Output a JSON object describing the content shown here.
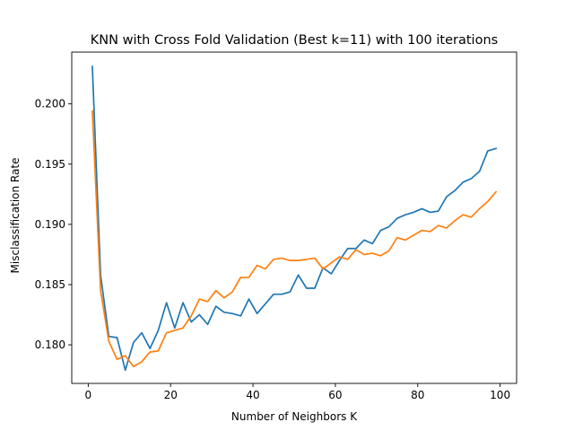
{
  "chart_data": {
    "type": "line",
    "title": "KNN with Cross Fold Validation (Best k=11) with 100 iterations",
    "xlabel": "Number of Neighbors K",
    "ylabel": "Misclassification Rate",
    "xlim": [
      -4,
      104
    ],
    "ylim": [
      0.1768,
      0.2043
    ],
    "xticks": [
      0,
      20,
      40,
      60,
      80,
      100
    ],
    "yticks": [
      0.18,
      0.185,
      0.19,
      0.195,
      0.2
    ],
    "ytick_labels": [
      "0.180",
      "0.185",
      "0.190",
      "0.195",
      "0.200"
    ],
    "grid": false,
    "x": [
      1,
      3,
      5,
      7,
      9,
      11,
      13,
      15,
      17,
      19,
      21,
      23,
      25,
      27,
      29,
      31,
      33,
      35,
      37,
      39,
      41,
      43,
      45,
      47,
      49,
      51,
      53,
      55,
      57,
      59,
      61,
      63,
      65,
      67,
      69,
      71,
      73,
      75,
      77,
      79,
      81,
      83,
      85,
      87,
      89,
      91,
      93,
      95,
      97,
      99
    ],
    "series": [
      {
        "color": "#1f77b4",
        "values": [
          0.2031,
          0.1858,
          0.1807,
          0.1806,
          0.1779,
          0.1802,
          0.181,
          0.1797,
          0.1812,
          0.1835,
          0.1814,
          0.1835,
          0.1819,
          0.1825,
          0.1817,
          0.1832,
          0.1827,
          0.1826,
          0.1824,
          0.1838,
          0.1826,
          0.1834,
          0.1842,
          0.1842,
          0.1844,
          0.1858,
          0.1847,
          0.1847,
          0.1864,
          0.1859,
          0.187,
          0.188,
          0.188,
          0.1887,
          0.1884,
          0.1895,
          0.1898,
          0.1905,
          0.1908,
          0.191,
          0.1913,
          0.191,
          0.1911,
          0.1923,
          0.1928,
          0.1935,
          0.1938,
          0.1944,
          0.1961,
          0.1963
        ]
      },
      {
        "color": "#ff7f0e",
        "values": [
          0.1994,
          0.1845,
          0.1803,
          0.1788,
          0.1791,
          0.1782,
          0.1786,
          0.1794,
          0.1795,
          0.181,
          0.1812,
          0.1814,
          0.1824,
          0.1838,
          0.1836,
          0.1845,
          0.1839,
          0.1844,
          0.1856,
          0.1856,
          0.1866,
          0.1863,
          0.1871,
          0.1872,
          0.187,
          0.187,
          0.1871,
          0.1872,
          0.1863,
          0.1868,
          0.1873,
          0.1871,
          0.1879,
          0.1875,
          0.1876,
          0.1874,
          0.1878,
          0.1889,
          0.1887,
          0.1891,
          0.1895,
          0.1894,
          0.1899,
          0.1897,
          0.1903,
          0.1908,
          0.1906,
          0.1913,
          0.1919,
          0.1927
        ]
      }
    ]
  }
}
